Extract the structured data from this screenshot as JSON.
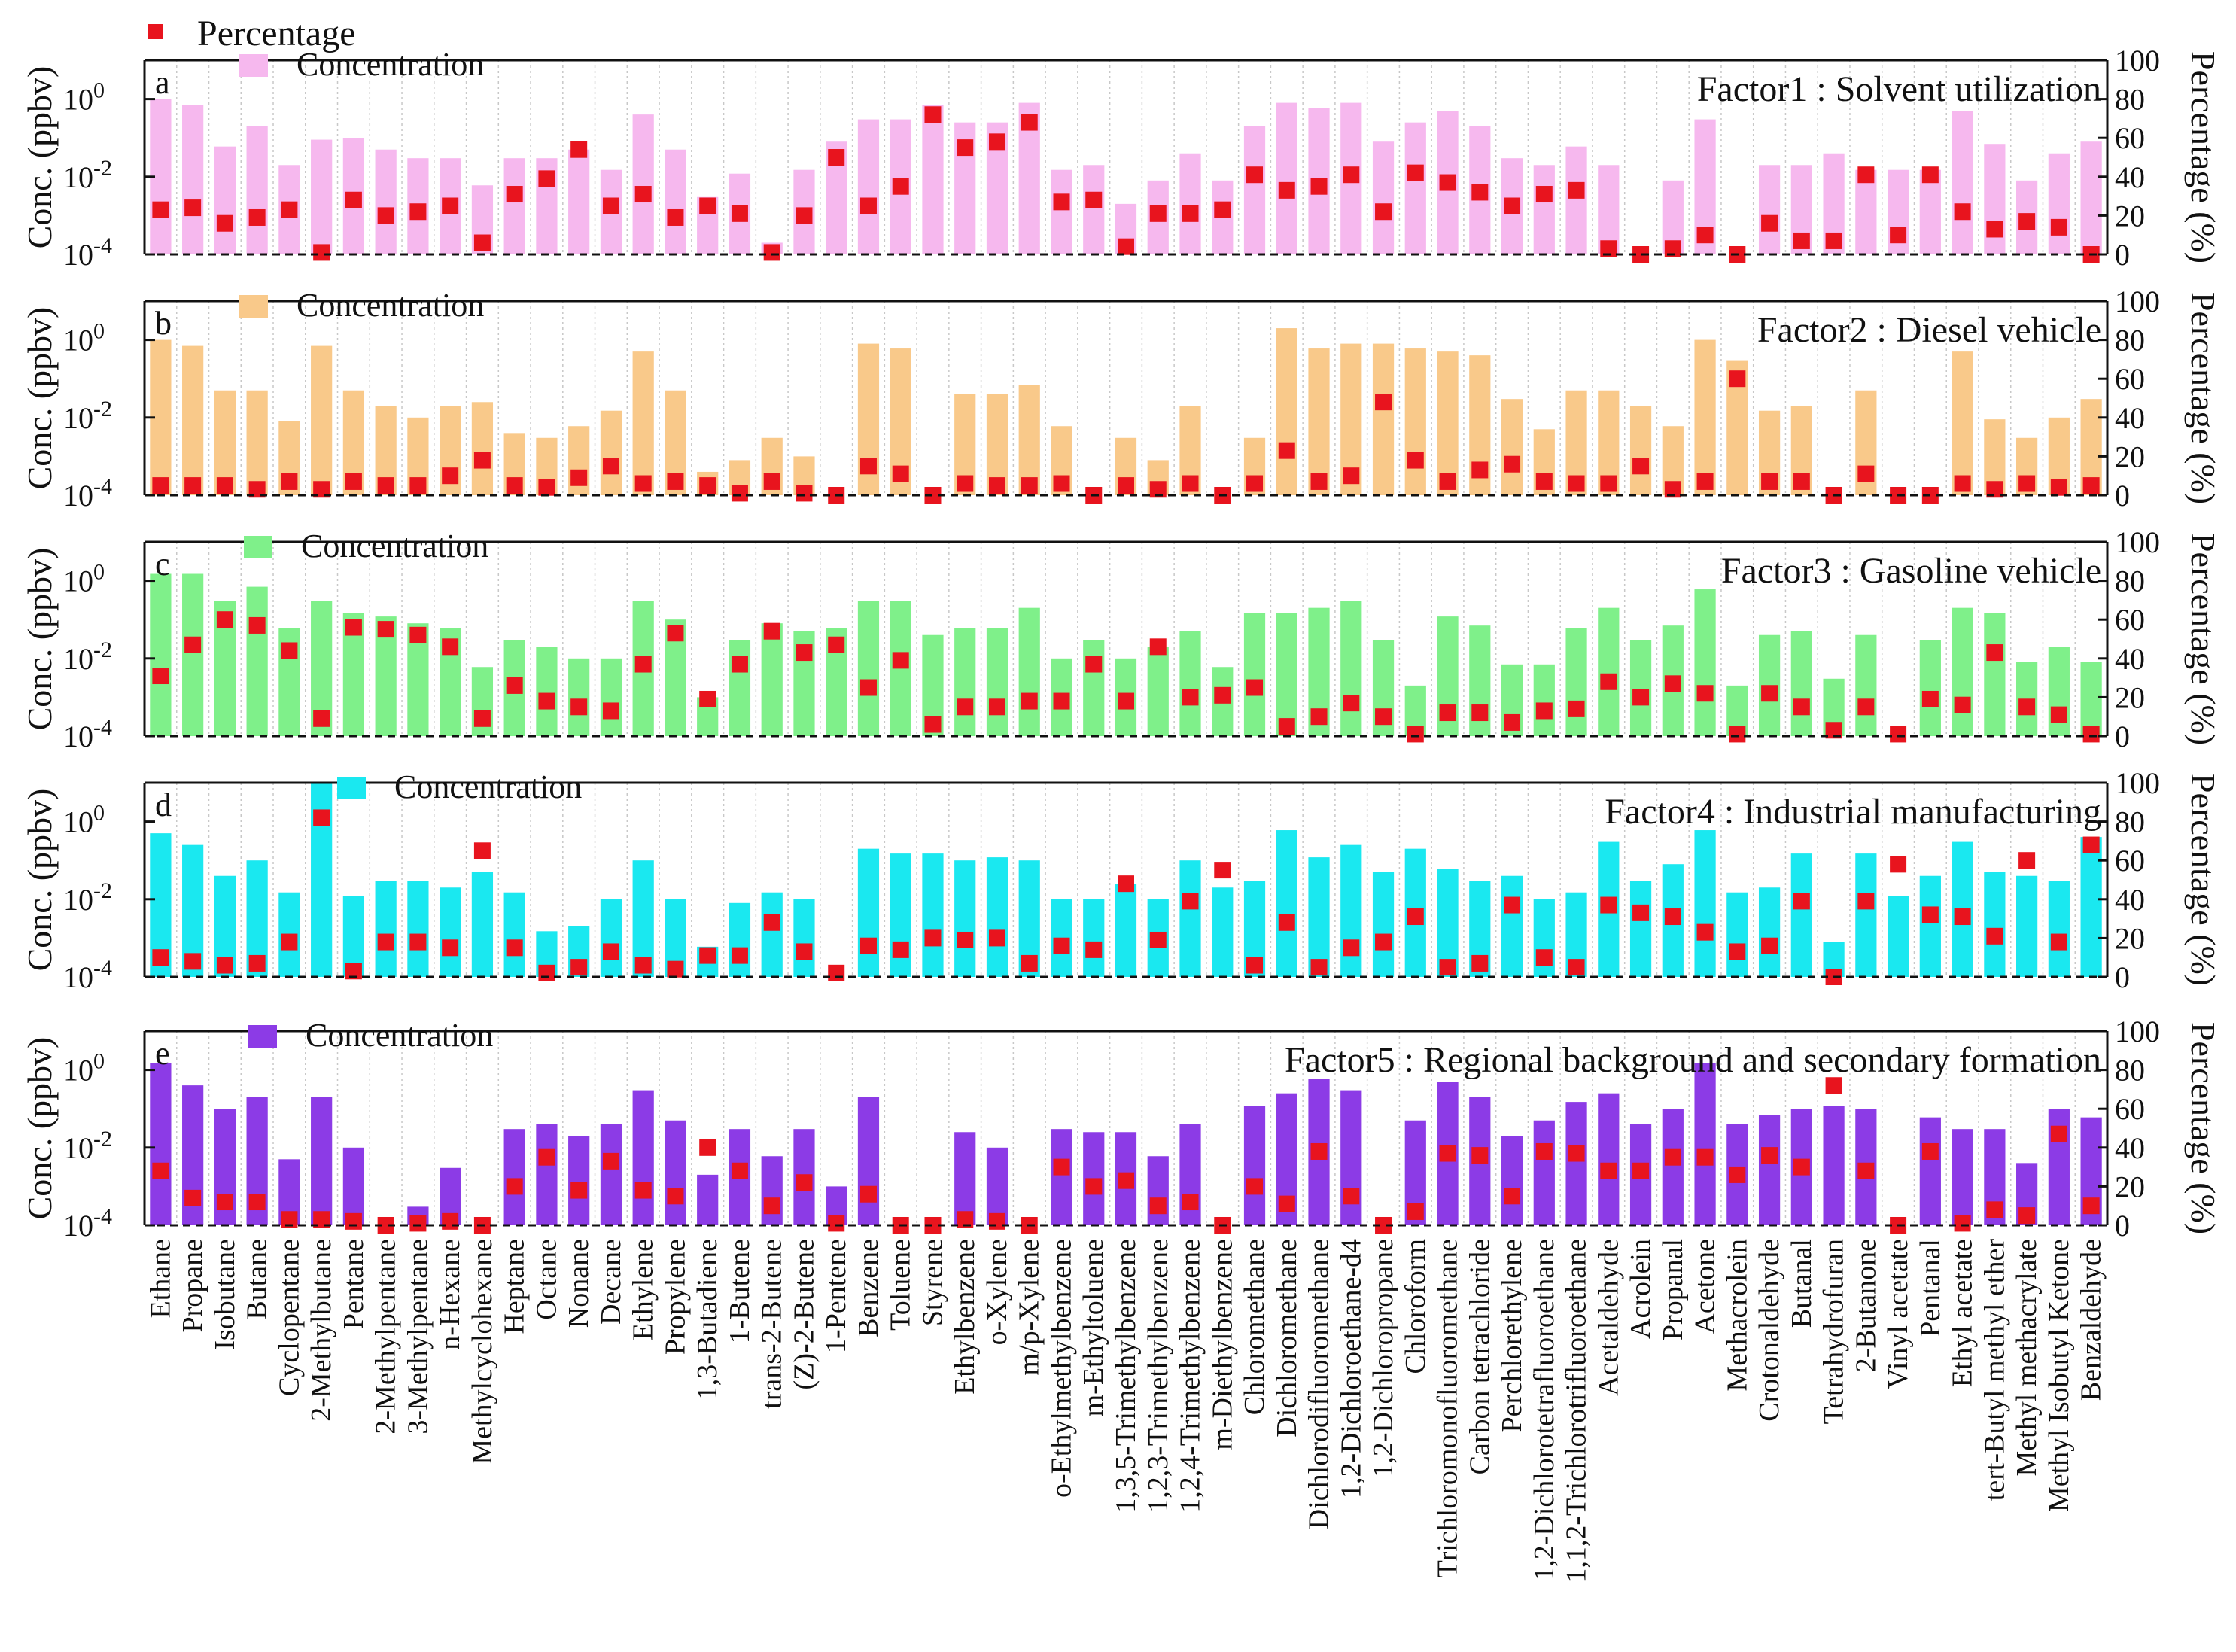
{
  "legend": {
    "percentage_label": "Percentage"
  },
  "axes": {
    "left_label": "Conc. (ppbv)",
    "right_label": "Percentage (%)",
    "left_ticks": [
      "10",
      "10",
      "10"
    ],
    "left_exponents": [
      "0",
      "-2",
      "-4"
    ],
    "right_ticks": [
      "100",
      "80",
      "60",
      "40",
      "20",
      "0"
    ]
  },
  "colors": {
    "percentage": "#e8141e",
    "panels": [
      "#f6b8ee",
      "#f9c98a",
      "#7ff08a",
      "#1ae8f0",
      "#8c3be6"
    ]
  },
  "chart_data": {
    "type": "bar",
    "yscale": "log",
    "ylim": [
      0.0001,
      10
    ],
    "y2lim": [
      0,
      100
    ],
    "categories": [
      "Ethane",
      "Propane",
      "Isobutane",
      "Butane",
      "Cyclopentane",
      "2-Methylbutane",
      "Pentane",
      "2-Methylpentane",
      "3-Methylpentane",
      "n-Hexane",
      "Methylcyclohexane",
      "Heptane",
      "Octane",
      "Nonane",
      "Decane",
      "Ethylene",
      "Propylene",
      "1,3-Butadiene",
      "1-Butene",
      "trans-2-Butene",
      "(Z)-2-Butene",
      "1-Pentene",
      "Benzene",
      "Toluene",
      "Styrene",
      "Ethylbenzene",
      "o-Xylene",
      "m/p-Xylene",
      "o-Ethylmethylbenzene",
      "m-Ethyltoluene",
      "1,3,5-Trimethylbenzene",
      "1,2,3-Trimethylbenzene",
      "1,2,4-Trimethylbenzene",
      "m-Diethylbenzene",
      "Chloromethane",
      "Dichloromethane",
      "Dichlorodifluoromethane",
      "1,2-Dichloroethane-d4",
      "1,2-Dichloropropane",
      "Chloroform",
      "Trichloromonofluoromethane",
      "Carbon tetrachloride",
      "Perchlorethylene",
      "1,2-Dichlorotetrafluoroethane",
      "1,1,2-Trichlorotrifluoroethane",
      "Acetaldehyde",
      "Acrolein",
      "Propanal",
      "Acetone",
      "Methacrolein",
      "Crotonaldehyde",
      "Butanal",
      "Tetrahydrofuran",
      "2-Butanone",
      "Vinyl acetate",
      "Pentanal",
      "Ethyl acetate",
      "tert-Butyl methyl ether",
      "Methyl methacrylate",
      "Methyl Isobutyl Ketone",
      "Benzaldehyde"
    ],
    "panels": [
      {
        "letter": "a",
        "title": "Factor1 : Solvent utilization",
        "series_name": "Concentration",
        "concentration": [
          1,
          0.7,
          0.06,
          0.2,
          0.02,
          0.09,
          0.1,
          0.05,
          0.03,
          0.03,
          0.006,
          0.03,
          0.03,
          0.05,
          0.015,
          0.4,
          0.05,
          0.003,
          0.012,
          0.0002,
          0.015,
          0.08,
          0.3,
          0.3,
          0.7,
          0.25,
          0.25,
          0.8,
          0.015,
          0.02,
          0.002,
          0.008,
          0.04,
          0.008,
          0.2,
          0.8,
          0.6,
          0.8,
          0.08,
          0.25,
          0.5,
          0.2,
          0.03,
          0.02,
          0.06,
          0.02,
          0.0001,
          0.008,
          0.3,
          0.0001,
          0.02,
          0.02,
          0.04,
          0.015,
          0.015,
          0.015,
          0.5,
          0.07,
          0.008,
          0.04,
          0.08
        ],
        "percentage": [
          23,
          24,
          16,
          19,
          23,
          1,
          28,
          20,
          22,
          25,
          6,
          31,
          39,
          54,
          25,
          31,
          19,
          25,
          21,
          1,
          20,
          50,
          25,
          35,
          72,
          55,
          58,
          68,
          27,
          28,
          4,
          21,
          21,
          23,
          41,
          33,
          35,
          41,
          22,
          42,
          37,
          32,
          25,
          31,
          33,
          3,
          0,
          3,
          10,
          0,
          16,
          7,
          7,
          41,
          10,
          41,
          22,
          13,
          17,
          14,
          0
        ]
      },
      {
        "letter": "b",
        "title": "Factor2 : Diesel vehicle",
        "series_name": "Concentration",
        "concentration": [
          1,
          0.7,
          0.05,
          0.05,
          0.008,
          0.7,
          0.05,
          0.02,
          0.01,
          0.02,
          0.025,
          0.004,
          0.003,
          0.006,
          0.015,
          0.5,
          0.05,
          0.0004,
          0.0008,
          0.003,
          0.001,
          0,
          0.8,
          0.6,
          0,
          0.04,
          0.04,
          0.07,
          0.006,
          0,
          0.003,
          0.0008,
          0.02,
          0,
          0.003,
          2,
          0.6,
          0.8,
          0.8,
          0.6,
          0.5,
          0.4,
          0.03,
          0.005,
          0.05,
          0.05,
          0.02,
          0.006,
          1,
          0.3,
          0.015,
          0.02,
          0,
          0.05,
          0,
          0,
          0.5,
          0.009,
          0.003,
          0.01,
          0.03
        ],
        "percentage": [
          5,
          5,
          5,
          3,
          7,
          3,
          7,
          5,
          5,
          10,
          18,
          5,
          4,
          9,
          15,
          6,
          7,
          5,
          1,
          7,
          1,
          0,
          15,
          11,
          0,
          6,
          5,
          5,
          6,
          0,
          5,
          3,
          6,
          0,
          6,
          23,
          7,
          10,
          48,
          18,
          7,
          13,
          16,
          7,
          6,
          6,
          15,
          3,
          7,
          60,
          7,
          7,
          0,
          11,
          0,
          0,
          6,
          3,
          6,
          4,
          5
        ]
      },
      {
        "letter": "c",
        "title": "Factor3 : Gasoline vehicle",
        "series_name": "Concentration",
        "concentration": [
          1.5,
          1.5,
          0.3,
          0.7,
          0.06,
          0.3,
          0.15,
          0.12,
          0.08,
          0.06,
          0.006,
          0.03,
          0.02,
          0.01,
          0.01,
          0.3,
          0.1,
          0.001,
          0.03,
          0.08,
          0.05,
          0.06,
          0.3,
          0.3,
          0.04,
          0.06,
          0.06,
          0.2,
          0.01,
          0.03,
          0.01,
          0.02,
          0.05,
          0.006,
          0.15,
          0.15,
          0.2,
          0.3,
          0.03,
          0.002,
          0.12,
          0.07,
          0.007,
          0.007,
          0.06,
          0.2,
          0.03,
          0.07,
          0.6,
          0.002,
          0.04,
          0.05,
          0.003,
          0.04,
          0,
          0.03,
          0.2,
          0.15,
          0.008,
          0.02,
          0.008
        ],
        "percentage": [
          31,
          47,
          60,
          57,
          44,
          9,
          56,
          55,
          52,
          46,
          9,
          26,
          18,
          15,
          13,
          37,
          53,
          19,
          37,
          54,
          43,
          47,
          25,
          39,
          6,
          15,
          15,
          18,
          18,
          37,
          18,
          46,
          20,
          21,
          25,
          5,
          10,
          17,
          10,
          1,
          12,
          12,
          7,
          13,
          14,
          28,
          20,
          27,
          22,
          1,
          22,
          15,
          3,
          15,
          1,
          19,
          16,
          43,
          15,
          11,
          1
        ]
      },
      {
        "letter": "d",
        "title": "Factor4 : Industrial manufacturing",
        "series_name": "Concentration",
        "concentration": [
          0.5,
          0.25,
          0.04,
          0.1,
          0.015,
          10,
          0.012,
          0.03,
          0.03,
          0.02,
          0.05,
          0.015,
          0.0015,
          0.002,
          0.01,
          0.1,
          0.01,
          0.0006,
          0.008,
          0.015,
          0.01,
          0.0001,
          0.2,
          0.15,
          0.15,
          0.1,
          0.12,
          0.1,
          0.01,
          0.01,
          0.025,
          0.01,
          0.1,
          0.02,
          0.03,
          0.6,
          0.12,
          0.25,
          0.05,
          0.2,
          0.06,
          0.03,
          0.04,
          0.01,
          0.015,
          0.3,
          0.03,
          0.08,
          0.6,
          0.015,
          0.02,
          0.15,
          0.0008,
          0.15,
          0.012,
          0.04,
          0.3,
          0.05,
          0.04,
          0.03,
          0.4
        ],
        "percentage": [
          10,
          8,
          6,
          7,
          18,
          82,
          3,
          18,
          18,
          15,
          65,
          15,
          2,
          5,
          13,
          6,
          4,
          11,
          11,
          28,
          13,
          2,
          16,
          14,
          20,
          19,
          20,
          7,
          16,
          14,
          48,
          19,
          39,
          55,
          6,
          28,
          5,
          15,
          18,
          31,
          5,
          7,
          37,
          10,
          5,
          37,
          33,
          31,
          23,
          13,
          16,
          39,
          0,
          39,
          58,
          32,
          31,
          21,
          60,
          18,
          68
        ]
      },
      {
        "letter": "e",
        "title": "Factor5 : Regional background and secondary formation",
        "series_name": "Concentration",
        "concentration": [
          1.5,
          0.4,
          0.1,
          0.2,
          0.005,
          0.2,
          0.01,
          0,
          0.0003,
          0.003,
          0,
          0.03,
          0.04,
          0.02,
          0.04,
          0.3,
          0.05,
          0.002,
          0.03,
          0.006,
          0.03,
          0.001,
          0.2,
          0,
          0,
          0.025,
          0.01,
          0,
          0.03,
          0.025,
          0.025,
          0.006,
          0.04,
          0,
          0.12,
          0.25,
          0.6,
          0.3,
          0,
          0.05,
          0.5,
          0.2,
          0.02,
          0.05,
          0.15,
          0.25,
          0.04,
          0.1,
          1.5,
          0.04,
          0.07,
          0.1,
          0.12,
          0.1,
          0,
          0.06,
          0.03,
          0.03,
          0.004,
          0.1,
          0.06
        ],
        "percentage": [
          28,
          14,
          12,
          12,
          3,
          3,
          2,
          0,
          1,
          2,
          0,
          20,
          35,
          18,
          33,
          18,
          15,
          40,
          28,
          10,
          22,
          1,
          16,
          0,
          0,
          3,
          2,
          0,
          30,
          20,
          23,
          10,
          12,
          0,
          20,
          11,
          38,
          15,
          0,
          7,
          37,
          36,
          15,
          38,
          37,
          28,
          28,
          35,
          35,
          26,
          36,
          30,
          72,
          28,
          0,
          38,
          1,
          8,
          5,
          47,
          10
        ]
      }
    ]
  }
}
